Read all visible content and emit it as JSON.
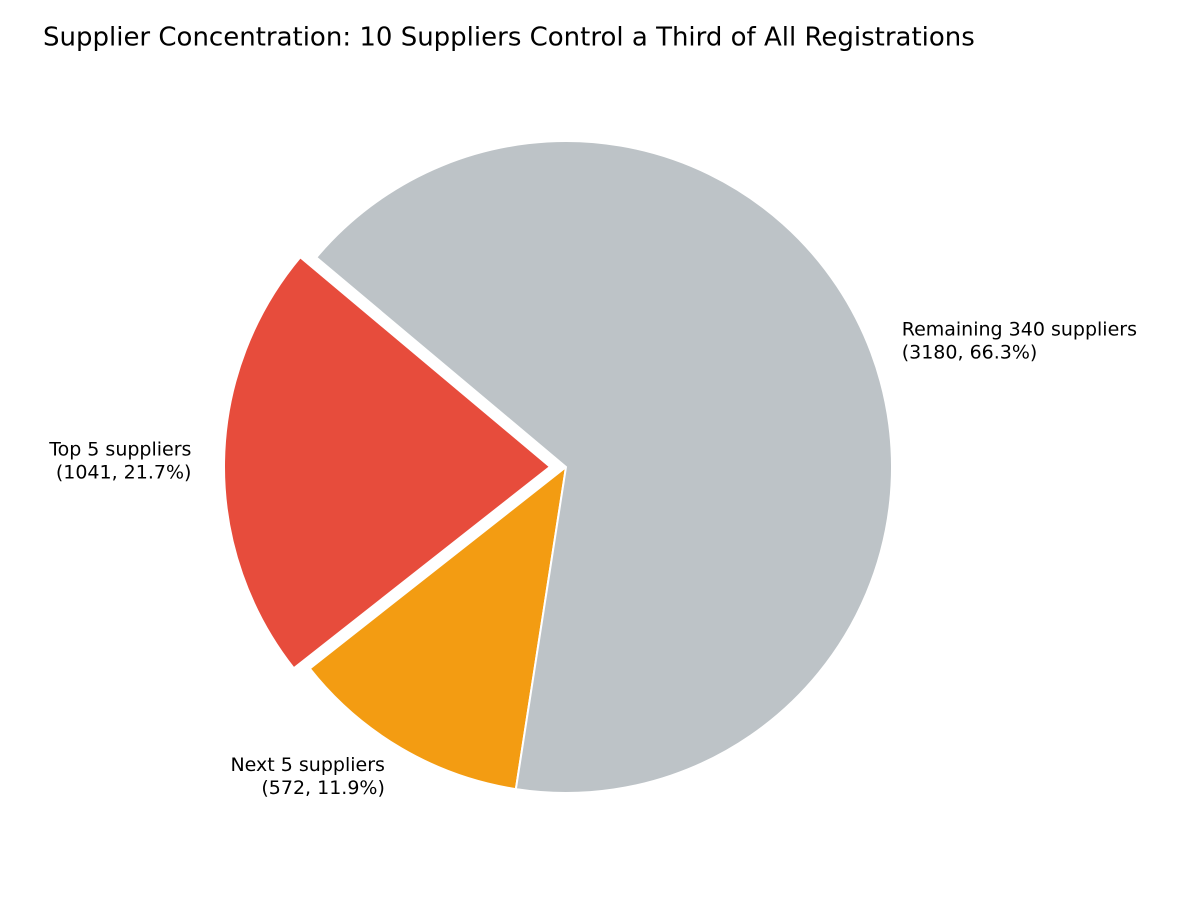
{
  "chart_data": {
    "type": "pie",
    "title": "Supplier Concentration: 10 Suppliers Control a Third of All Registrations",
    "categories": [
      "Top 5 suppliers",
      "Next 5 suppliers",
      "Remaining 340 suppliers"
    ],
    "values": [
      1041,
      572,
      3180
    ],
    "value_labels": [
      "(1041, 21.7%)",
      "(572, 11.9%)",
      "(3180, 66.3%)"
    ],
    "colors": [
      "#e74c3c",
      "#f39c12",
      "#bdc3c7"
    ]
  }
}
